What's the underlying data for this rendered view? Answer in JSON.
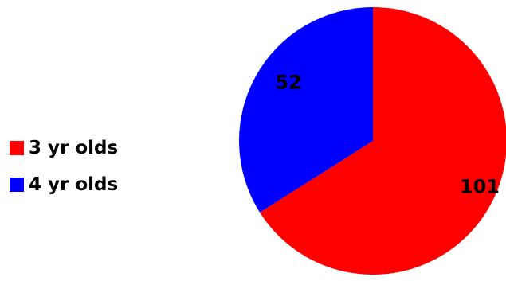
{
  "chart_data": {
    "type": "pie",
    "title": "",
    "categories": [
      "3 yr olds",
      "4 yr olds"
    ],
    "values": [
      101,
      52
    ],
    "colors": [
      "#ff0000",
      "#0000ff"
    ],
    "legend_position": "left",
    "data_labels": [
      "101",
      "52"
    ]
  }
}
